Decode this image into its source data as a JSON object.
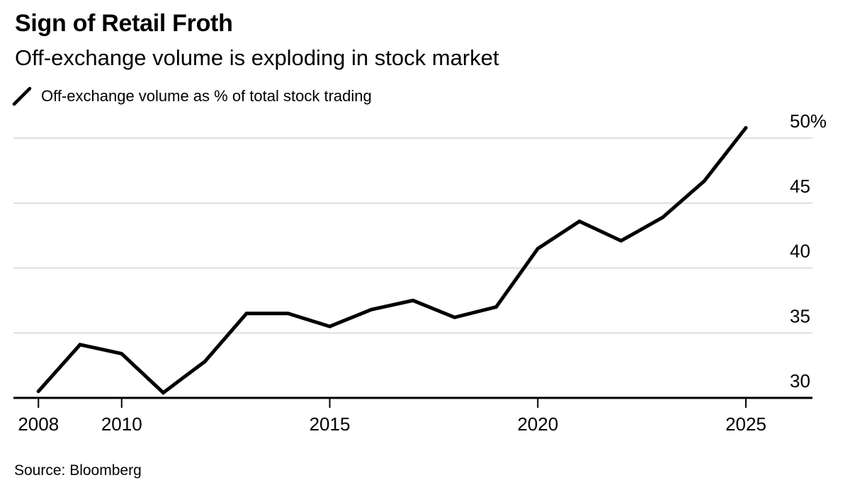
{
  "header": {
    "title": "Sign of Retail Froth",
    "subtitle": "Off-exchange volume is exploding in stock market"
  },
  "legend": {
    "marker_icon": "line-slash-icon",
    "label": "Off-exchange volume as % of total stock trading"
  },
  "source_note": "Source: Bloomberg",
  "colors": {
    "background": "#ffffff",
    "text": "#000000",
    "line": "#000000",
    "grid": "#dddddd",
    "axis": "#000000"
  },
  "chart_data": {
    "type": "line",
    "title": "Sign of Retail Froth",
    "subtitle": "Off-exchange volume is exploding in stock market",
    "unit": "%",
    "series": [
      {
        "name": "Off-exchange volume as % of total stock trading",
        "x": [
          2008,
          2009,
          2010,
          2011,
          2012,
          2013,
          2014,
          2015,
          2016,
          2017,
          2018,
          2019,
          2020,
          2021,
          2022,
          2023,
          2024,
          2025
        ],
        "values": [
          30.5,
          34.1,
          33.4,
          30.4,
          32.8,
          36.5,
          36.5,
          35.5,
          36.8,
          37.5,
          36.2,
          37.0,
          41.5,
          43.6,
          42.1,
          43.9,
          46.7,
          50.8
        ]
      }
    ],
    "xlabel": "",
    "ylabel": "",
    "x_ticks": [
      2008,
      2010,
      2015,
      2020,
      2025
    ],
    "y_ticks": [
      30,
      35,
      40,
      45,
      50
    ],
    "y_tick_labels": [
      "30",
      "35",
      "40",
      "45",
      "50%"
    ],
    "xlim": [
      2007.4,
      2026.6
    ],
    "ylim": [
      30,
      52
    ],
    "grid": "horizontal",
    "legend_position": "top-left",
    "source": "Source: Bloomberg"
  }
}
